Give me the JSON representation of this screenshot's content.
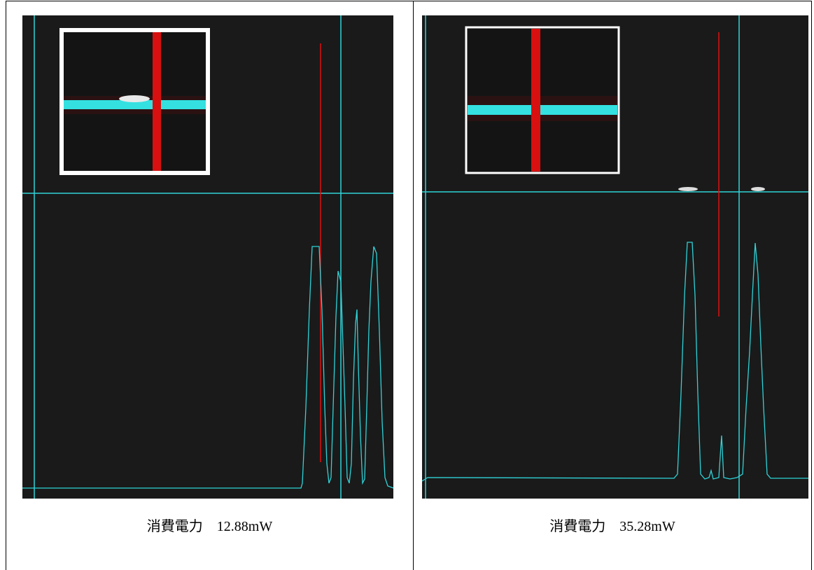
{
  "cells": [
    {
      "caption": "消費電力　12.88mW"
    },
    {
      "caption": "消費電力　35.28mW"
    }
  ]
}
